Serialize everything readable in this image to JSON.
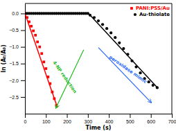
{
  "chart_data": {
    "type": "scatter",
    "xlabel": "Time (s)",
    "ylabel": "ln (Aₜ/A₀)",
    "xlim": [
      0,
      700
    ],
    "ylim": [
      -3.0,
      0.3
    ],
    "xticks": [
      0,
      100,
      200,
      300,
      400,
      500,
      600,
      700
    ],
    "yticks": [
      {
        "value": 0.0,
        "label": "0.0"
      },
      {
        "value": -0.5,
        "label": "−0.5"
      },
      {
        "value": -1.0,
        "label": "−1.0"
      },
      {
        "value": -1.5,
        "label": "−1.5"
      },
      {
        "value": -2.0,
        "label": "−2.0"
      },
      {
        "value": -2.5,
        "label": "−2.5"
      }
    ],
    "grid": false,
    "legend": "upper right",
    "series": [
      {
        "name": "PANI:PSS/Au",
        "type": "scatter",
        "marker": "square",
        "color": "#ff0000",
        "x": [
          0,
          10,
          20,
          30,
          40,
          50,
          60,
          70,
          80,
          90,
          100,
          110,
          120,
          130,
          140,
          150
        ],
        "values": [
          0.0,
          -0.12,
          -0.25,
          -0.38,
          -0.52,
          -0.65,
          -0.85,
          -1.0,
          -1.2,
          -1.45,
          -1.65,
          -1.9,
          -2.1,
          -2.35,
          -2.55,
          -2.75
        ]
      },
      {
        "type": "line",
        "line_style": "solid",
        "color": "#ff0000",
        "x": [
          0,
          155
        ],
        "values": [
          0.0,
          -2.82
        ]
      },
      {
        "type": "scatter",
        "marker": "circle",
        "color": "#000000",
        "x": [
          0,
          10,
          20,
          30,
          40,
          50,
          60,
          70,
          80,
          90,
          100,
          110,
          120,
          130,
          140,
          150,
          160,
          170,
          180,
          190,
          200,
          210,
          220,
          230,
          240,
          250,
          260,
          270,
          280,
          290,
          300
        ],
        "values": [
          0.0,
          0.0,
          0.0,
          0.0,
          0.0,
          0.0,
          0.0,
          0.0,
          0.0,
          0.0,
          0.0,
          0.0,
          0.0,
          0.0,
          0.0,
          0.0,
          0.0,
          0.0,
          0.0,
          0.0,
          0.0,
          0.0,
          0.0,
          0.0,
          0.0,
          0.0,
          0.0,
          0.0,
          0.0,
          0.0,
          0.0
        ]
      },
      {
        "name": "Au-thiolate",
        "type": "scatter",
        "marker": "circle",
        "color": "#000000",
        "x": [
          310,
          330,
          350,
          370,
          390,
          410,
          430,
          450,
          470,
          490,
          510,
          530,
          550,
          570,
          590,
          610,
          630
        ],
        "values": [
          -0.05,
          -0.12,
          -0.22,
          -0.33,
          -0.45,
          -0.58,
          -0.72,
          -0.88,
          -1.05,
          -1.22,
          -1.42,
          -1.6,
          -1.78,
          -1.95,
          -2.05,
          -2.15,
          -2.22
        ]
      },
      {
        "type": "line",
        "line_style": "solid",
        "color": "#000000",
        "x": [
          305,
          635
        ],
        "values": [
          -0.01,
          -2.25
        ]
      }
    ],
    "annotations": [
      {
        "text": "4-NP reduction",
        "color": "#22bb22"
      },
      {
        "text": "peroxidase mimic",
        "color": "#2266ff"
      }
    ]
  }
}
